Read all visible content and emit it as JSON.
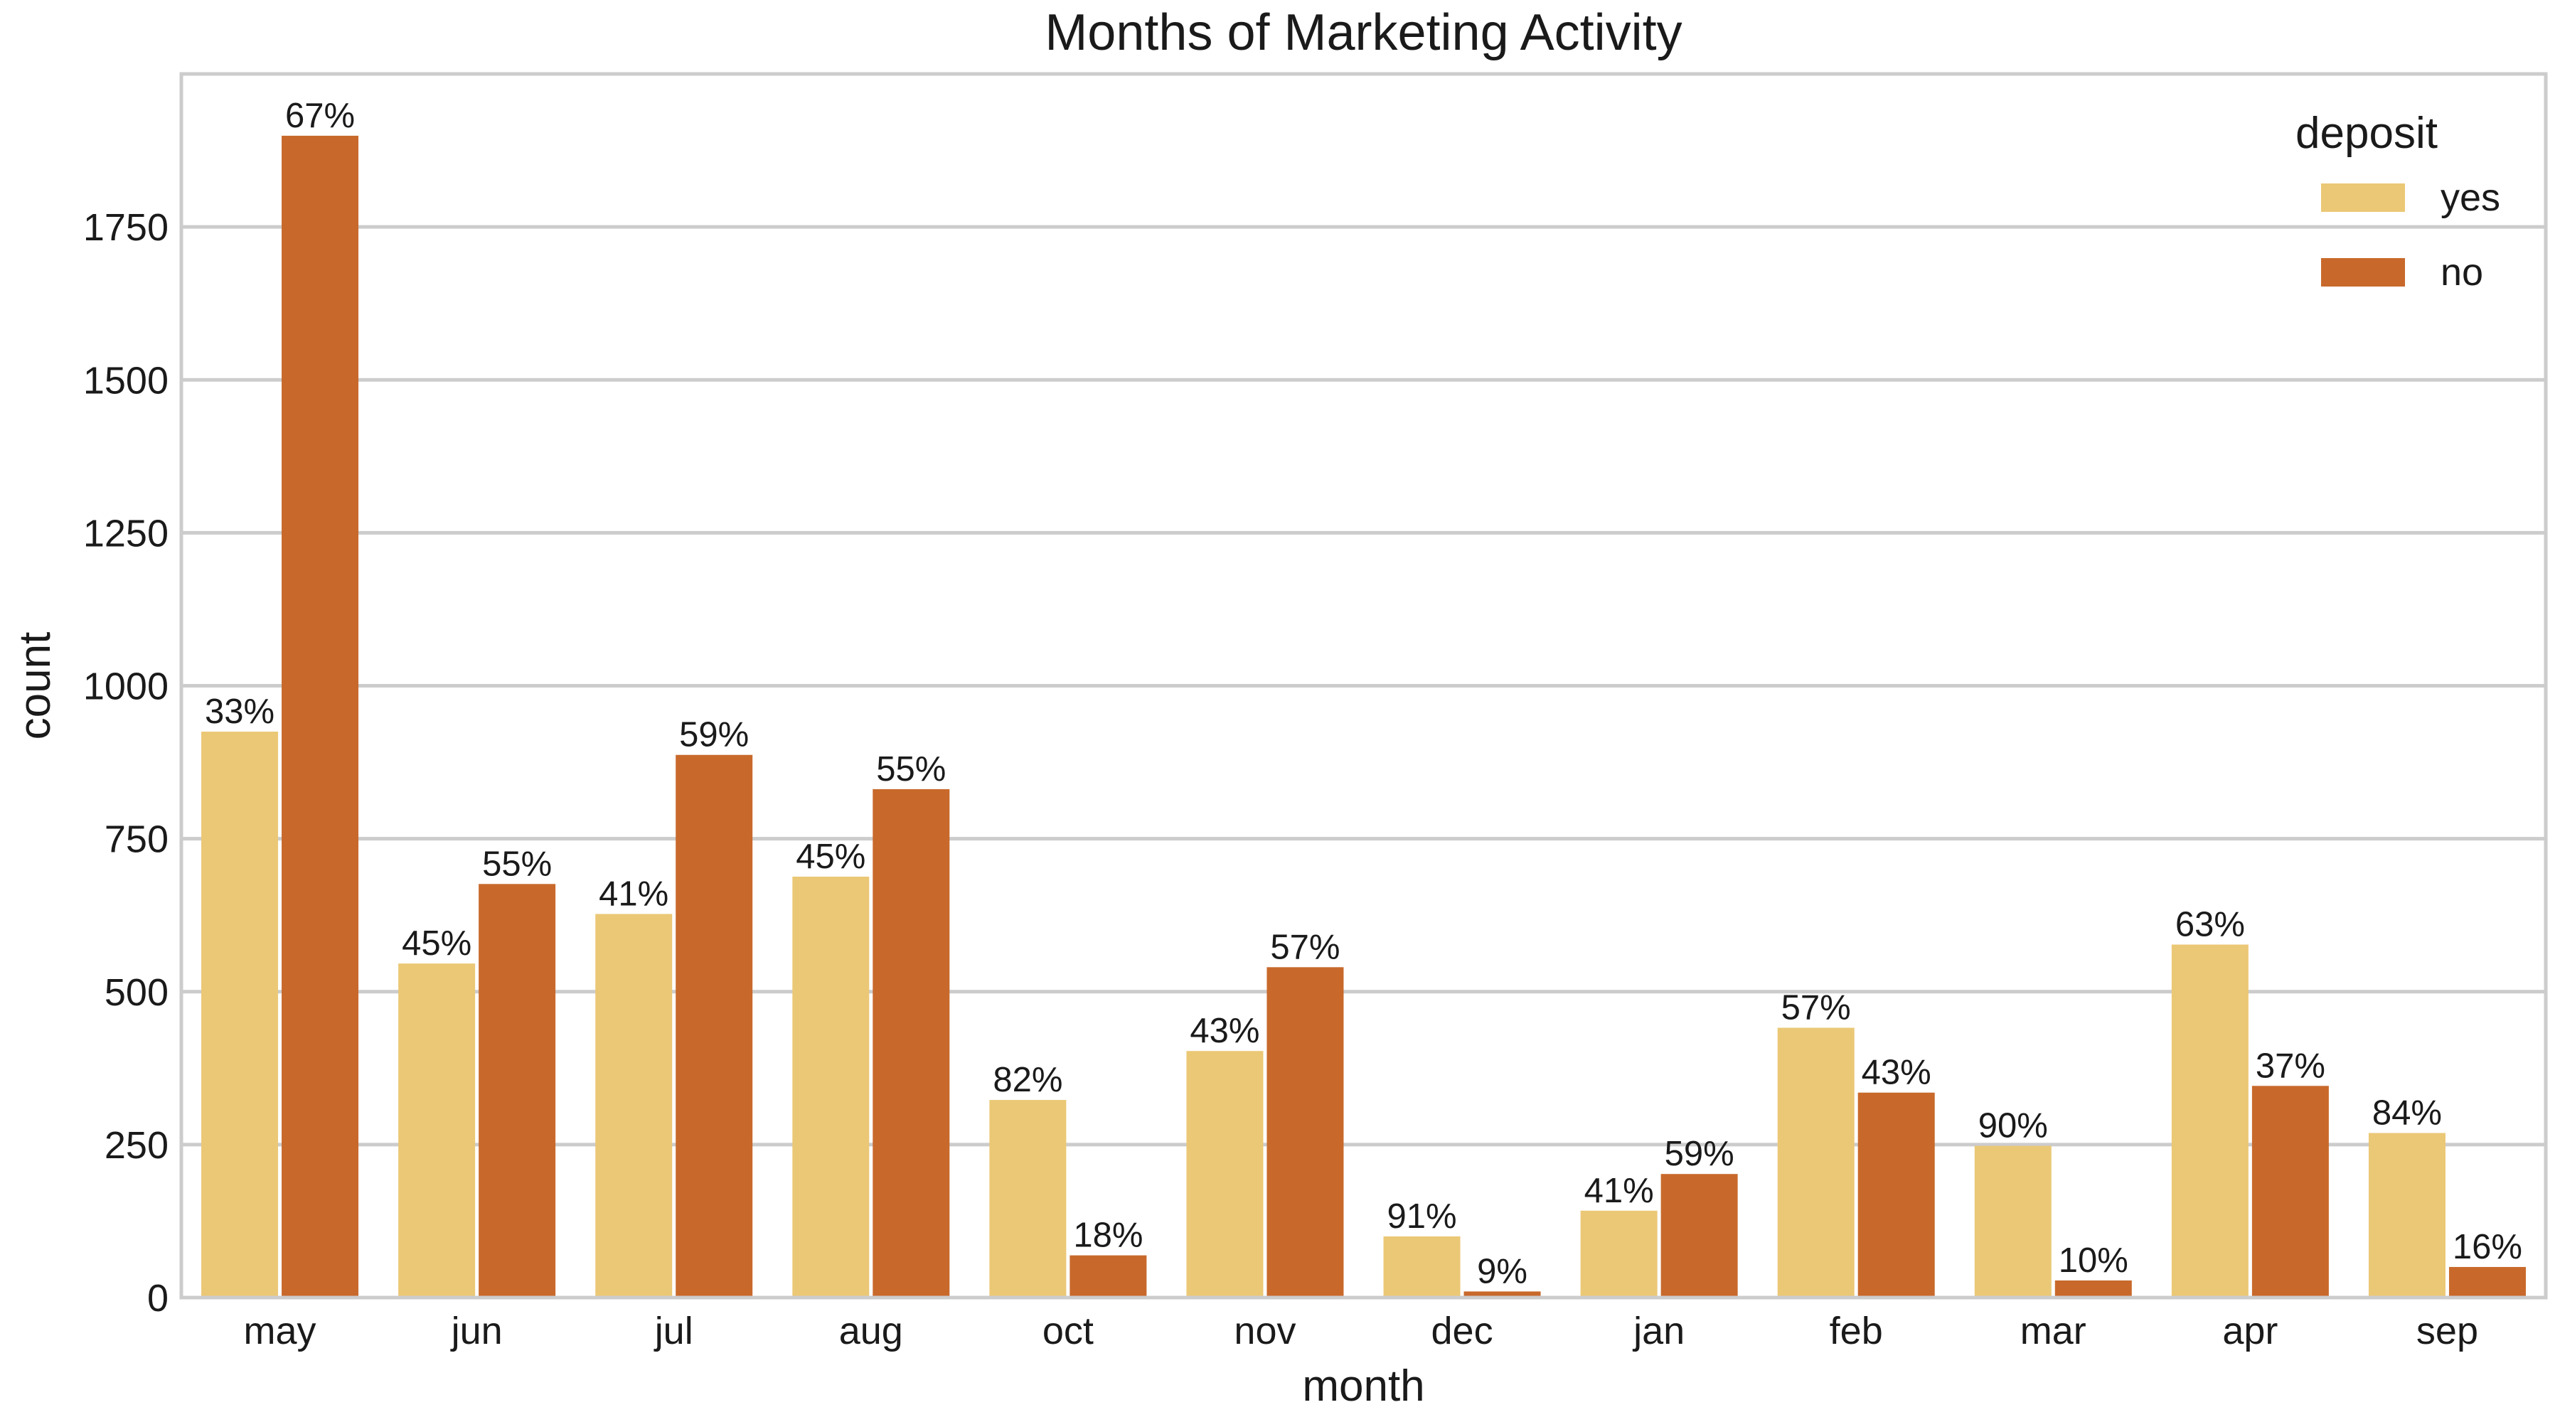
{
  "chart_data": {
    "type": "bar",
    "title": "Months of Marketing Activity",
    "xlabel": "month",
    "ylabel": "count",
    "ylim": [
      0,
      2000
    ],
    "yticks": [
      0,
      250,
      500,
      750,
      1000,
      1250,
      1500,
      1750
    ],
    "grid": "horizontal",
    "legend": {
      "title": "deposit",
      "placement": "top-right"
    },
    "categories": [
      "may",
      "jun",
      "jul",
      "aug",
      "oct",
      "nov",
      "dec",
      "jan",
      "feb",
      "mar",
      "apr",
      "sep"
    ],
    "series": [
      {
        "name": "yes",
        "color": "#EBC876",
        "values": [
          925,
          546,
          627,
          688,
          323,
          403,
          100,
          142,
          441,
          248,
          577,
          269
        ],
        "labels": [
          "33%",
          "45%",
          "41%",
          "45%",
          "82%",
          "43%",
          "91%",
          "41%",
          "57%",
          "90%",
          "63%",
          "84%"
        ]
      },
      {
        "name": "no",
        "color": "#C8692B",
        "values": [
          1899,
          676,
          887,
          831,
          69,
          540,
          10,
          202,
          335,
          28,
          346,
          50
        ],
        "labels": [
          "67%",
          "55%",
          "59%",
          "55%",
          "18%",
          "57%",
          "9%",
          "59%",
          "43%",
          "10%",
          "37%",
          "16%"
        ]
      }
    ]
  }
}
